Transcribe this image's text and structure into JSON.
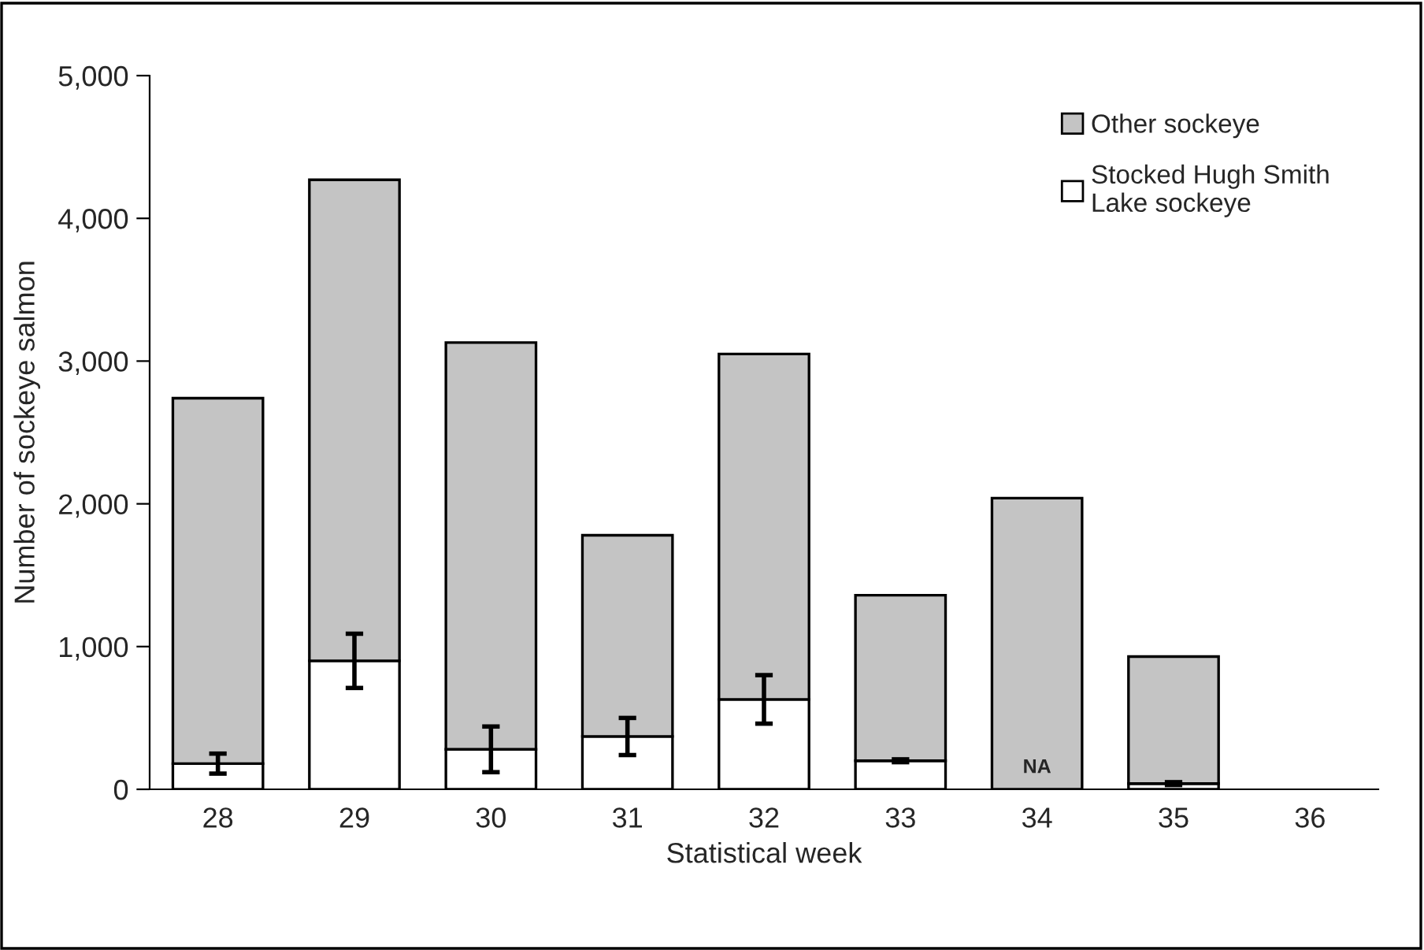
{
  "chart_data": {
    "type": "bar",
    "stacked": true,
    "xlabel": "Statistical week",
    "ylabel": "Number of sockeye salmon",
    "categories": [
      "28",
      "29",
      "30",
      "31",
      "32",
      "33",
      "34",
      "35",
      "36"
    ],
    "series": [
      {
        "name": "Stocked Hugh Smith\nLake sockeye",
        "color": "#ffffff",
        "values": [
          180,
          900,
          280,
          370,
          630,
          200,
          null,
          40,
          null
        ],
        "errors": [
          70,
          190,
          160,
          130,
          170,
          10,
          null,
          10,
          null
        ]
      },
      {
        "name": "Other sockeye",
        "color": "#c4c4c4",
        "values": [
          2560,
          3370,
          2850,
          1410,
          2420,
          1160,
          2040,
          890,
          null
        ]
      }
    ],
    "ylim": [
      0,
      5000
    ],
    "yticks": [
      {
        "value": 0,
        "label": "0"
      },
      {
        "value": 1000,
        "label": "1,000"
      },
      {
        "value": 2000,
        "label": "2,000"
      },
      {
        "value": 3000,
        "label": "3,000"
      },
      {
        "value": 4000,
        "label": "4,000"
      },
      {
        "value": 5000,
        "label": "5,000"
      }
    ],
    "annotations": [
      "NA"
    ],
    "grid": false,
    "legend": "top right"
  }
}
